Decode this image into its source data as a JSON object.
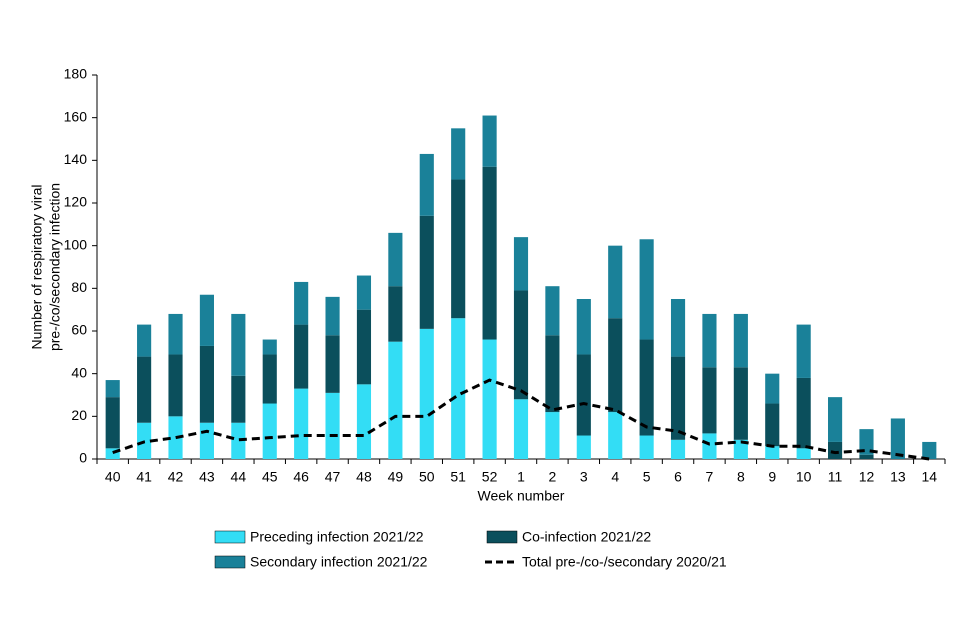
{
  "chart_data": {
    "type": "stacked-bar-line",
    "x_label": "Week number",
    "y_label": [
      "Number of respiratory viral",
      "pre-/co/secondary infection"
    ],
    "categories": [
      "40",
      "41",
      "42",
      "43",
      "44",
      "45",
      "46",
      "47",
      "48",
      "49",
      "50",
      "51",
      "52",
      "1",
      "2",
      "3",
      "4",
      "5",
      "6",
      "7",
      "8",
      "9",
      "10",
      "11",
      "12",
      "13",
      "14"
    ],
    "series": [
      {
        "name": "Preceding infection 2021/22",
        "color": "#33ddf5",
        "kind": "bar",
        "values": [
          5,
          17,
          20,
          17,
          17,
          26,
          33,
          31,
          35,
          55,
          61,
          66,
          56,
          28,
          22,
          11,
          22,
          11,
          9,
          12,
          9,
          6,
          5,
          0,
          0,
          0,
          0
        ]
      },
      {
        "name": "Co-infection 2021/22",
        "color": "#0b4f5c",
        "kind": "bar",
        "values": [
          24,
          31,
          29,
          36,
          22,
          23,
          30,
          27,
          35,
          26,
          53,
          65,
          81,
          51,
          36,
          38,
          44,
          45,
          39,
          31,
          34,
          20,
          33,
          8,
          2,
          0,
          0
        ]
      },
      {
        "name": "Secondary infection 2021/22",
        "color": "#1a8199",
        "kind": "bar",
        "values": [
          8,
          15,
          19,
          24,
          29,
          7,
          20,
          18,
          16,
          25,
          29,
          24,
          24,
          25,
          23,
          26,
          34,
          47,
          27,
          25,
          25,
          14,
          25,
          21,
          12,
          19,
          8
        ]
      },
      {
        "name": "Total pre-/co-/secondary 2020/21",
        "color": "#000000",
        "kind": "line",
        "values": [
          3,
          8,
          10,
          13,
          9,
          10,
          11,
          11,
          11,
          20,
          20,
          30,
          37,
          32,
          23,
          26,
          23,
          15,
          13,
          7,
          8,
          6,
          6,
          3,
          4,
          2,
          0
        ]
      }
    ],
    "ylim": [
      0,
      180
    ],
    "yticks": [
      0,
      20,
      40,
      60,
      80,
      100,
      120,
      140,
      160,
      180
    ]
  }
}
